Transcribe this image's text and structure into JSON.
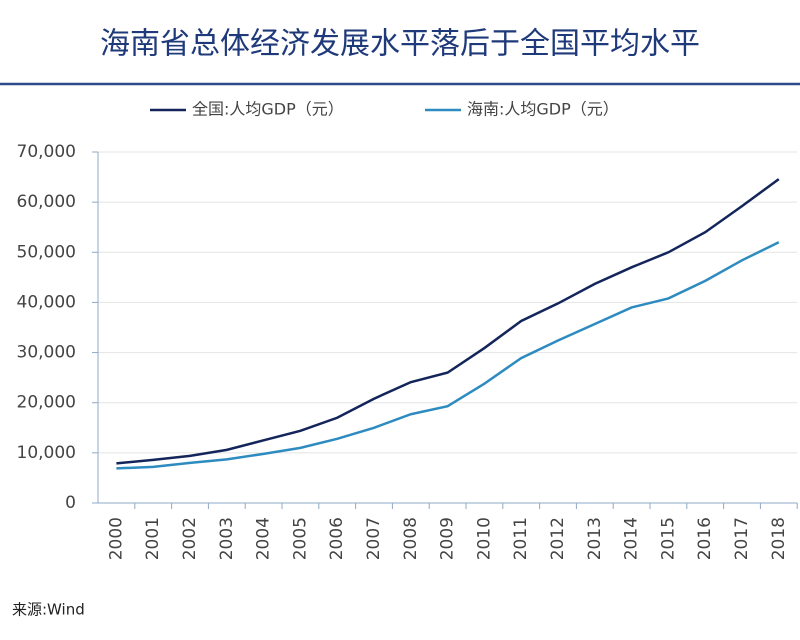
{
  "chart_data": {
    "type": "line",
    "title": "海南省总体经济发展水平落后于全国平均水平",
    "source": "来源:Wind",
    "categories": [
      "2000",
      "2001",
      "2002",
      "2003",
      "2004",
      "2005",
      "2006",
      "2007",
      "2008",
      "2009",
      "2010",
      "2011",
      "2012",
      "2013",
      "2014",
      "2015",
      "2016",
      "2017",
      "2018"
    ],
    "series": [
      {
        "name": "全国:人均GDP（元）",
        "color": "#13255a",
        "values": [
          7900,
          8600,
          9400,
          10600,
          12500,
          14400,
          17000,
          20800,
          24100,
          26000,
          30900,
          36300,
          39800,
          43700,
          47000,
          50000,
          54000,
          59200,
          64600
        ]
      },
      {
        "name": "海南:人均GDP（元）",
        "color": "#2e8bc0",
        "values": [
          6900,
          7200,
          8000,
          8700,
          9800,
          11000,
          12800,
          15000,
          17700,
          19300,
          23800,
          28900,
          32400,
          35700,
          39000,
          40800,
          44300,
          48400,
          52000
        ]
      }
    ],
    "ylim": [
      0,
      70000
    ],
    "yticks": [
      0,
      {
        "value": 10000,
        "label": "10,000"
      },
      {
        "value": 20000,
        "label": "20,000"
      },
      {
        "value": 30000,
        "label": "30,000"
      },
      {
        "value": 40000,
        "label": "40,000"
      },
      {
        "value": 50000,
        "label": "50,000"
      },
      {
        "value": 60000,
        "label": "60,000"
      },
      {
        "value": 70000,
        "label": "70,000"
      }
    ],
    "grid": true
  }
}
